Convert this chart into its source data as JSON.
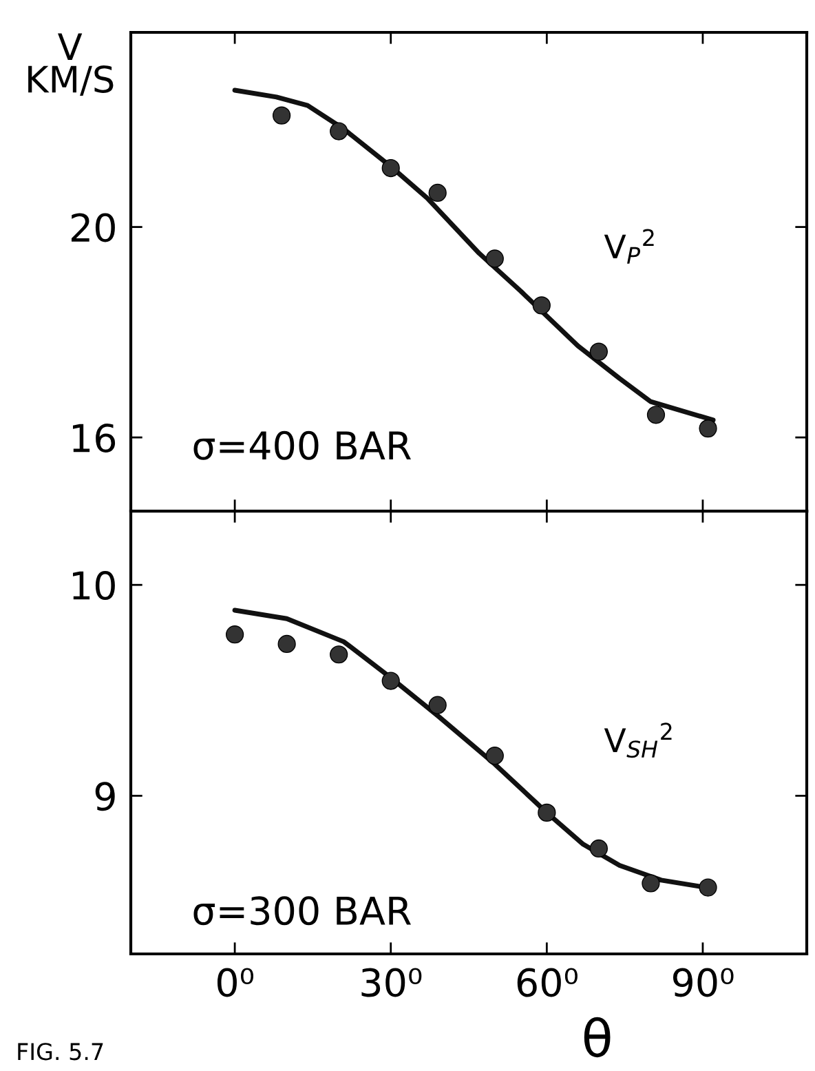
{
  "chart_data": [
    {
      "type": "scatter",
      "ylabel": "V\nKM/S",
      "annotations": [
        "σ=400 BAR",
        "V$_{P}$$^{2}$"
      ],
      "tick_labels": "y",
      "marker": "circle",
      "grid": false,
      "xlim": [
        -20,
        110
      ],
      "xticks": [
        {
          "value": 0,
          "label": null
        },
        {
          "value": 30,
          "label": null
        },
        {
          "value": 60,
          "label": null
        },
        {
          "value": 90,
          "label": null
        }
      ],
      "ylim": [
        14.6,
        23.7
      ],
      "yticks": [
        16,
        20
      ],
      "series": [
        {
          "color": "#333333",
          "x": [
            9,
            20,
            30,
            39,
            50,
            59,
            70,
            81,
            91
          ],
          "values": [
            22.12,
            21.82,
            21.12,
            20.65,
            19.4,
            18.51,
            17.63,
            16.43,
            16.17
          ]
        },
        {
          "type": "line",
          "color": "#111111",
          "marker": "none",
          "x": [
            0,
            8,
            14,
            21,
            30,
            37,
            47,
            55,
            66,
            74,
            80,
            92
          ],
          "values": [
            22.6,
            22.47,
            22.31,
            21.86,
            21.15,
            20.55,
            19.5,
            18.78,
            17.74,
            17.12,
            16.68,
            16.33
          ]
        }
      ]
    },
    {
      "type": "scatter",
      "xlabel": "θ",
      "annotations": [
        "σ=300 BAR",
        "V$_{SH}$$^{2}$",
        "FIG. 5.7"
      ],
      "marker": "circle",
      "grid": false,
      "xlim": [
        -20,
        110
      ],
      "xticks": [
        {
          "value": 0,
          "label": "0⁰"
        },
        {
          "value": 30,
          "label": "30⁰"
        },
        {
          "value": 60,
          "label": "60⁰"
        },
        {
          "value": 90,
          "label": "90⁰"
        }
      ],
      "ylim": [
        8.25,
        10.35
      ],
      "yticks": [
        9,
        10
      ],
      "series": [
        {
          "color": "#333333",
          "x": [
            0,
            10,
            20,
            30,
            39,
            50,
            60,
            70,
            80,
            91
          ],
          "values": [
            9.765,
            9.72,
            9.67,
            9.545,
            9.43,
            9.19,
            8.92,
            8.75,
            8.585,
            8.565
          ]
        },
        {
          "type": "line",
          "color": "#111111",
          "marker": "none",
          "x": [
            0,
            10,
            21,
            30,
            39,
            50,
            60,
            67,
            74,
            82,
            92
          ],
          "values": [
            9.88,
            9.84,
            9.73,
            9.56,
            9.38,
            9.15,
            8.92,
            8.77,
            8.67,
            8.6,
            8.56
          ]
        }
      ]
    }
  ]
}
